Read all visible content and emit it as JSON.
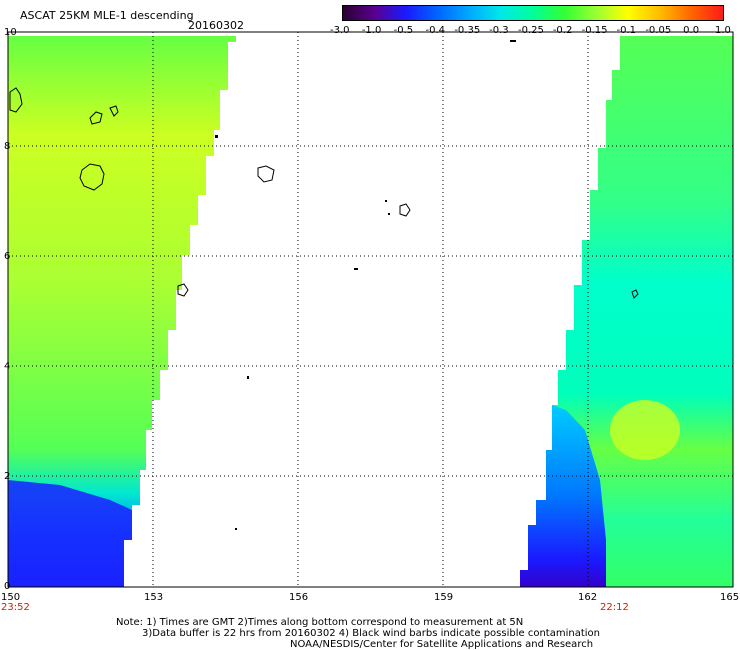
{
  "header": {
    "product": "ASCAT 25KM MLE-1 descending",
    "date": "20160302"
  },
  "colorbar": {
    "labels": [
      "-3.0",
      "-1.0",
      "-0.5",
      "-0.4",
      "-0.35",
      "-0.3",
      "-0.25",
      "-0.2",
      "-0.15",
      "-0.1",
      "-0.05",
      "0.0",
      "1.0"
    ],
    "colors": [
      "#2a0030",
      "#5a0090",
      "#1a1aff",
      "#0066ff",
      "#00aaff",
      "#00e8e8",
      "#00ff99",
      "#33ff33",
      "#99ff33",
      "#ffff00",
      "#ffbb00",
      "#ff6600",
      "#ff1a1a"
    ]
  },
  "axes": {
    "x_ticks": [
      "150",
      "153",
      "156",
      "159",
      "162",
      "165"
    ],
    "y_ticks": [
      "0",
      "2",
      "4",
      "6",
      "8",
      "10"
    ]
  },
  "times": {
    "left": "23:52",
    "right": "22:12"
  },
  "notes": [
    "Note: 1) Times are GMT 2)Times along bottom correspond to measurement at 5N",
    "3)Data buffer is 22 hrs from 20160302 4) Black wind barbs indicate possible contamination",
    "NOAA/NESDIS/Center for Satellite Applications and Research"
  ]
}
